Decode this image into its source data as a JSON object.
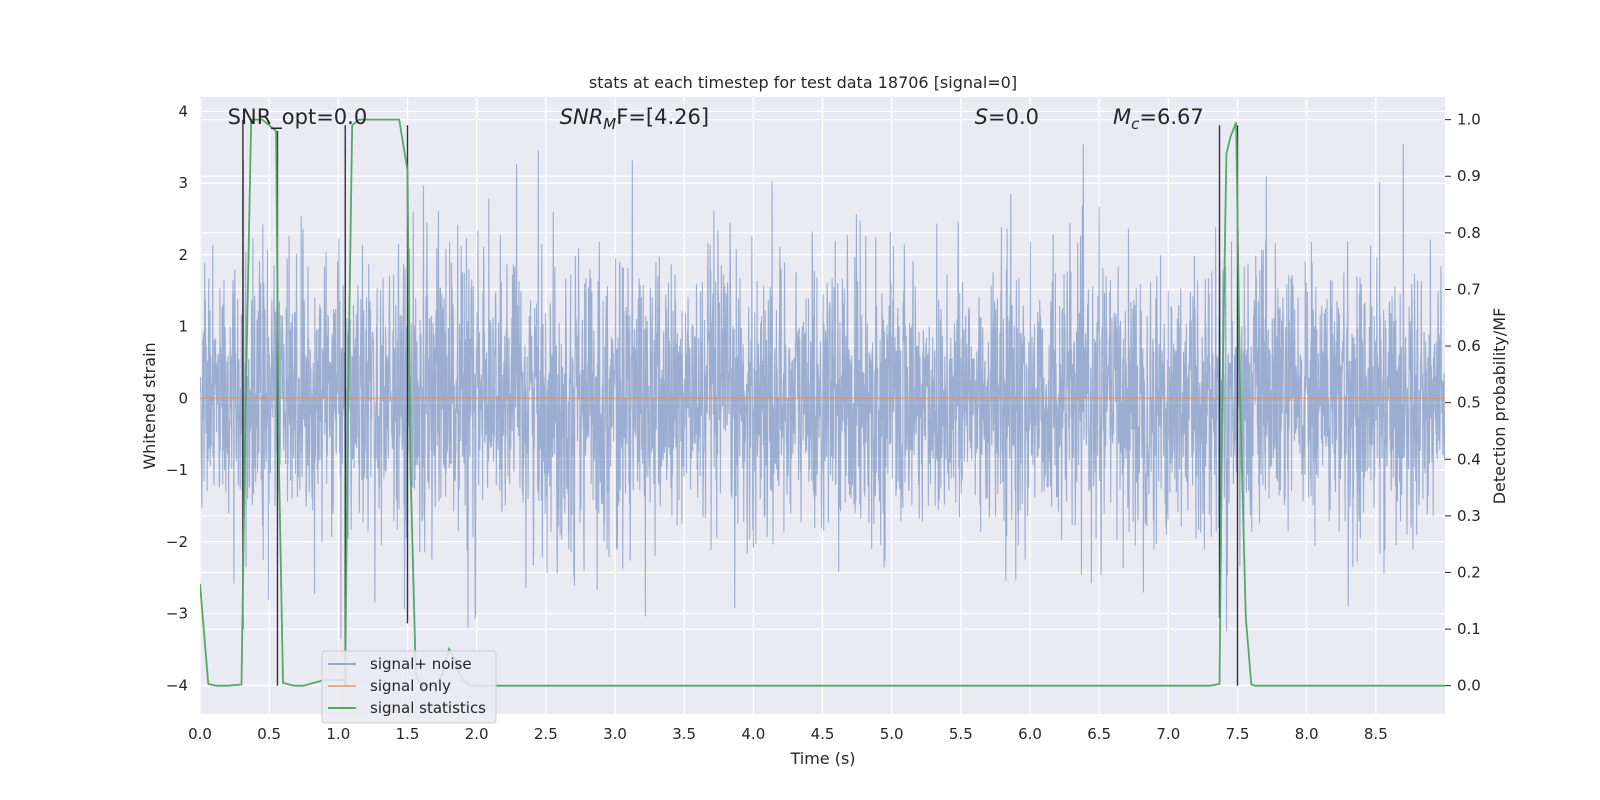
{
  "chart_data": {
    "type": "line",
    "title": "stats at each timestep for test data 18706 [signal=0]",
    "xlabel": "Time (s)",
    "ylabel": "Whitened strain",
    "ylabel_right": "Detection probability/MF",
    "xlim": [
      0.0,
      9.0
    ],
    "ylim": [
      -4.4,
      4.2
    ],
    "ylim_right": [
      -0.05,
      1.04
    ],
    "x_ticks": [
      "0.0",
      "0.5",
      "1.0",
      "1.5",
      "2.0",
      "2.5",
      "3.0",
      "3.5",
      "4.0",
      "4.5",
      "5.0",
      "5.5",
      "6.0",
      "6.5",
      "7.0",
      "7.5",
      "8.0",
      "8.5"
    ],
    "y_ticks": [
      "4",
      "3",
      "2",
      "1",
      "0",
      "−1",
      "−2",
      "−3",
      "−4"
    ],
    "y_ticks_right": [
      "1.0",
      "0.9",
      "0.8",
      "0.7",
      "0.6",
      "0.5",
      "0.4",
      "0.3",
      "0.2",
      "0.1",
      "0.0"
    ],
    "grid": true,
    "legend_placement": "lower-left",
    "annotations": [
      {
        "pre": "SNR_opt=",
        "sub": "",
        "post": "0.0",
        "x": 0.2
      },
      {
        "pre": "SNR",
        "sub": "M",
        "post": "F=[4.26]",
        "x": 2.6
      },
      {
        "pre": "S",
        "sub": "",
        "post": "=0.0",
        "x": 5.6
      },
      {
        "pre": "M",
        "sub": "c",
        "post": "=6.67",
        "x": 6.6
      }
    ],
    "series": [
      {
        "name": "signal+ noise",
        "color": "#4c72b0",
        "axis": "left",
        "duration": 9.0,
        "std": 0.95,
        "envelope": [
          [
            0.0,
            1.45
          ],
          [
            0.5,
            1.55
          ],
          [
            1.0,
            1.4
          ],
          [
            1.5,
            1.55
          ],
          [
            2.0,
            1.5
          ],
          [
            2.5,
            1.65
          ],
          [
            3.0,
            1.55
          ],
          [
            3.5,
            1.5
          ],
          [
            4.0,
            1.55
          ],
          [
            4.5,
            1.45
          ],
          [
            5.0,
            1.4
          ],
          [
            5.5,
            1.55
          ],
          [
            6.0,
            1.5
          ],
          [
            6.5,
            1.45
          ],
          [
            7.0,
            1.55
          ],
          [
            7.5,
            1.5
          ],
          [
            8.0,
            1.45
          ],
          [
            8.5,
            1.5
          ],
          [
            9.0,
            1.45
          ]
        ]
      },
      {
        "name": "signal only",
        "color": "#dd8452",
        "axis": "left",
        "points": [
          [
            0.0,
            0.0
          ],
          [
            9.0,
            0.0
          ]
        ]
      },
      {
        "name": "signal statistics",
        "color": "#55a868",
        "axis": "right",
        "points": [
          [
            0.0,
            0.18
          ],
          [
            0.06,
            0.003
          ],
          [
            0.12,
            0.0
          ],
          [
            0.2,
            0.0
          ],
          [
            0.3,
            0.002
          ],
          [
            0.33,
            0.5
          ],
          [
            0.37,
            1.0
          ],
          [
            0.4,
            1.0
          ],
          [
            0.45,
            1.0
          ],
          [
            0.5,
            0.99
          ],
          [
            0.55,
            0.98
          ],
          [
            0.57,
            0.4
          ],
          [
            0.6,
            0.005
          ],
          [
            0.68,
            0.0
          ],
          [
            0.75,
            0.0
          ],
          [
            0.82,
            0.005
          ],
          [
            0.9,
            0.01
          ],
          [
            1.0,
            0.01
          ],
          [
            1.05,
            0.01
          ],
          [
            1.07,
            0.5
          ],
          [
            1.1,
            0.99
          ],
          [
            1.15,
            1.0
          ],
          [
            1.3,
            1.0
          ],
          [
            1.44,
            1.0
          ],
          [
            1.5,
            0.91
          ],
          [
            1.52,
            0.4
          ],
          [
            1.56,
            0.02
          ],
          [
            1.6,
            0.0
          ],
          [
            1.7,
            0.0
          ],
          [
            1.75,
            0.02
          ],
          [
            1.8,
            0.065
          ],
          [
            1.84,
            0.05
          ],
          [
            1.86,
            0.03
          ],
          [
            1.9,
            0.01
          ],
          [
            1.95,
            0.0
          ],
          [
            2.5,
            0.0
          ],
          [
            3.0,
            0.0
          ],
          [
            4.0,
            0.0
          ],
          [
            5.0,
            0.0
          ],
          [
            6.0,
            0.0
          ],
          [
            7.0,
            0.0
          ],
          [
            7.3,
            0.0
          ],
          [
            7.37,
            0.003
          ],
          [
            7.39,
            0.5
          ],
          [
            7.42,
            0.94
          ],
          [
            7.45,
            0.97
          ],
          [
            7.49,
            0.995
          ],
          [
            7.52,
            0.5
          ],
          [
            7.56,
            0.12
          ],
          [
            7.6,
            0.002
          ],
          [
            7.63,
            0.0
          ],
          [
            8.0,
            0.0
          ],
          [
            8.5,
            0.0
          ],
          [
            9.0,
            0.0
          ]
        ]
      }
    ],
    "vlines": {
      "color": "#333333",
      "axis": "right",
      "lines": [
        {
          "x": 0.31,
          "y0": 0.1,
          "y1": 1.0
        },
        {
          "x": 0.56,
          "y0": 0.0,
          "y1": 0.98
        },
        {
          "x": 1.05,
          "y0": 0.0,
          "y1": 0.99
        },
        {
          "x": 1.5,
          "y0": 0.11,
          "y1": 0.99
        },
        {
          "x": 7.37,
          "y0": 0.12,
          "y1": 0.99
        },
        {
          "x": 7.5,
          "y0": 0.0,
          "y1": 0.99
        }
      ]
    }
  }
}
